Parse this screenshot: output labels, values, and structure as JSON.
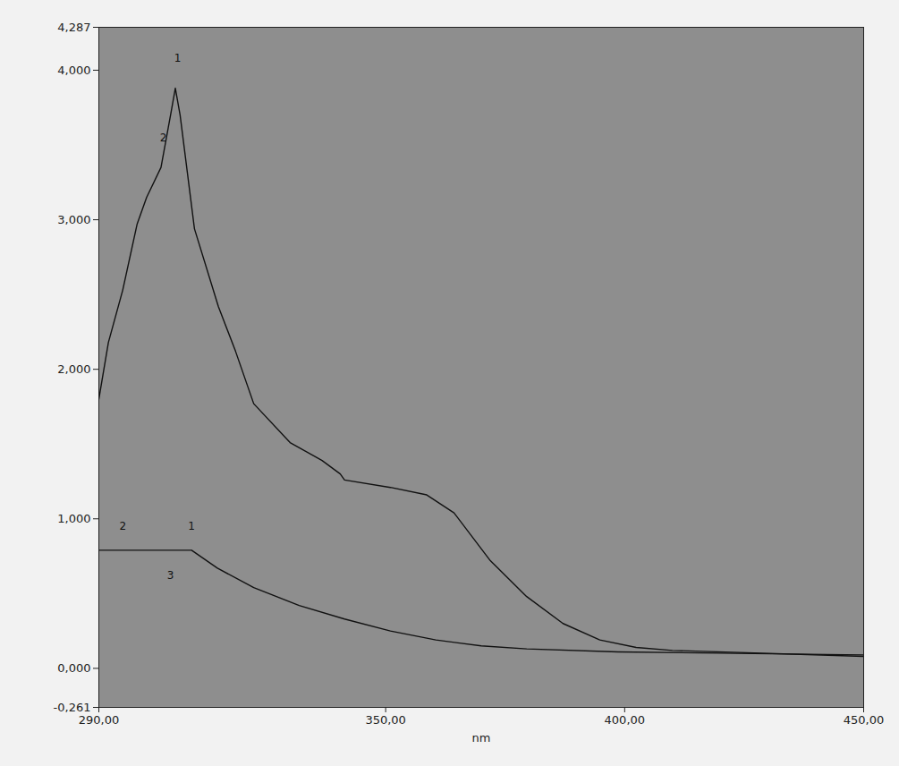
{
  "chart_data": {
    "type": "line",
    "x_label": "nm",
    "xlim": [
      290,
      450
    ],
    "xticks": [
      {
        "value": 290,
        "label": "290,00"
      },
      {
        "value": 350,
        "label": "350,00"
      },
      {
        "value": 400,
        "label": "400,00"
      },
      {
        "value": 450,
        "label": "450,00"
      }
    ],
    "ylim": [
      -0.261,
      4.287
    ],
    "yticks": [
      {
        "value": -0.261,
        "label": "-0,261"
      },
      {
        "value": 0,
        "label": "0,000"
      },
      {
        "value": 1,
        "label": "1,000"
      },
      {
        "value": 2,
        "label": "2,000"
      },
      {
        "value": 3,
        "label": "3,000"
      },
      {
        "value": 4,
        "label": "4,000"
      },
      {
        "value": 4.287,
        "label": "4,287"
      }
    ],
    "grid": false,
    "series": [
      {
        "color": "#111111",
        "x": [
          290,
          292,
          295,
          298,
          300,
          303,
          305,
          306,
          307,
          310,
          315,
          318.6,
          322.4,
          330,
          336.7,
          340.5,
          341.4,
          351,
          358.6,
          364.3,
          371.9,
          379.5,
          387.1,
          394.8,
          402.4,
          410,
          450
        ],
        "values": [
          1.8,
          2.18,
          2.53,
          2.97,
          3.15,
          3.35,
          3.7,
          3.88,
          3.7,
          2.94,
          2.42,
          2.12,
          1.77,
          1.51,
          1.39,
          1.3,
          1.26,
          1.21,
          1.16,
          1.04,
          0.72,
          0.48,
          0.3,
          0.19,
          0.14,
          0.12,
          0.08
        ]
      },
      {
        "color": "#111111",
        "x": [
          290,
          309.4,
          314.8,
          322.4,
          331.9,
          341.4,
          351,
          360.5,
          370,
          379.5,
          398.6,
          450
        ],
        "values": [
          0.79,
          0.79,
          0.67,
          0.54,
          0.42,
          0.33,
          0.25,
          0.19,
          0.15,
          0.13,
          0.11,
          0.09
        ]
      }
    ],
    "annotations": [
      {
        "x": 309.4,
        "y": 0.95,
        "label": "1"
      },
      {
        "x": 295,
        "y": 0.95,
        "label": "2"
      },
      {
        "x": 305,
        "y": 0.62,
        "label": "3"
      },
      {
        "x": 306.5,
        "y": 4.08,
        "label": "1"
      },
      {
        "x": 303.5,
        "y": 3.55,
        "label": "2"
      }
    ]
  }
}
